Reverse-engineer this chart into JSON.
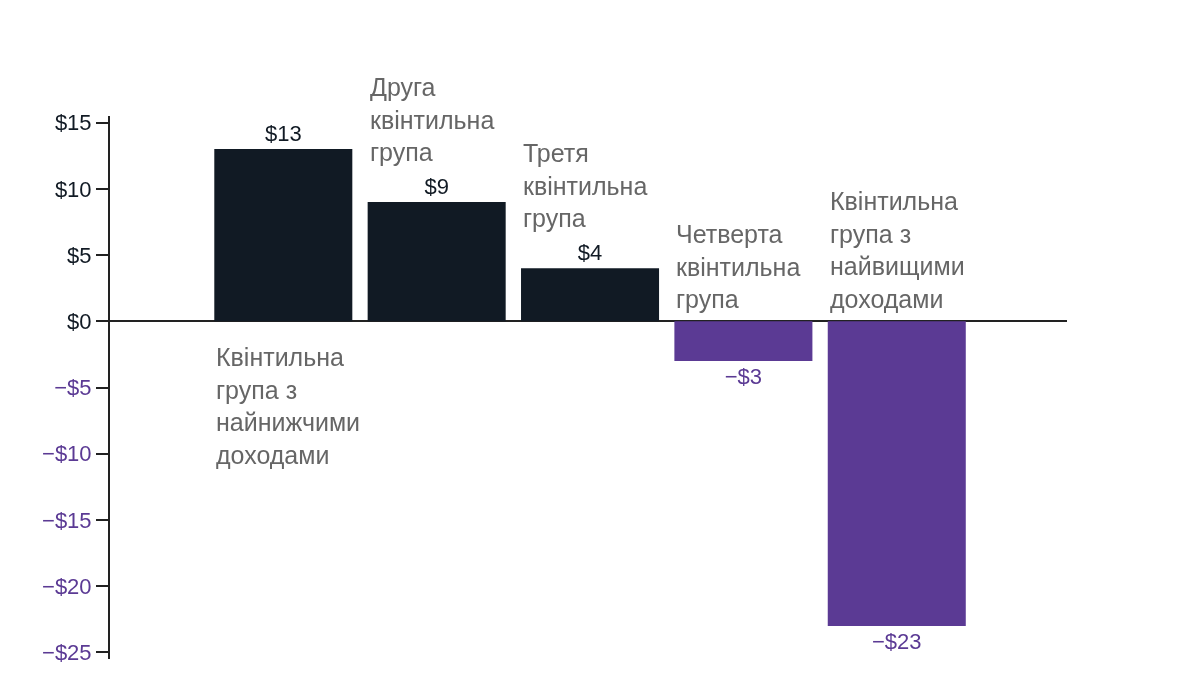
{
  "chart_data": {
    "type": "bar",
    "categories": [
      "Квінтильна група з найнижчими доходами",
      "Друга квінтильна група",
      "Третя квінтильна група",
      "Четверта квінтильна група",
      "Квінтильна група з найвищими доходами"
    ],
    "values": [
      13,
      9,
      4,
      -3,
      -23
    ],
    "colors": [
      "#111a24",
      "#111a24",
      "#111a24",
      "#5b3a94",
      "#5b3a94"
    ],
    "value_labels": [
      "$13",
      "$9",
      "$4",
      "−$3",
      "−$23"
    ],
    "ylim": [
      -25.5,
      15.5
    ],
    "yticks": [
      {
        "value": 15,
        "label": "$15"
      },
      {
        "value": 10,
        "label": "$10"
      },
      {
        "value": 5,
        "label": "$5"
      },
      {
        "value": 0,
        "label": "$0"
      },
      {
        "value": -5,
        "label": "−$5"
      },
      {
        "value": -10,
        "label": "−$10"
      },
      {
        "value": -15,
        "label": "−$15"
      },
      {
        "value": -20,
        "label": "−$20"
      },
      {
        "value": -25,
        "label": "−$25"
      }
    ],
    "tick_labels": "y",
    "legend": false
  }
}
